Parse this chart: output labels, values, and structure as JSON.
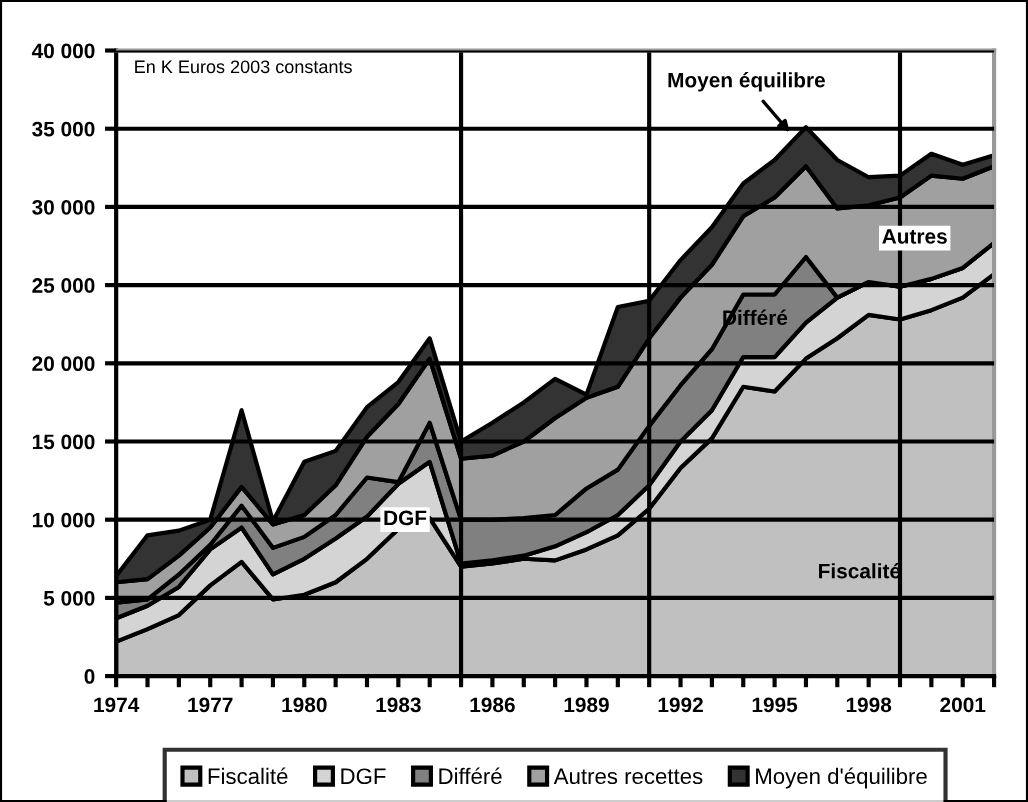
{
  "chart_data": {
    "type": "area",
    "stacked": true,
    "x": [
      1974,
      1975,
      1976,
      1977,
      1978,
      1979,
      1980,
      1981,
      1982,
      1983,
      1984,
      1985,
      1986,
      1987,
      1988,
      1989,
      1990,
      1991,
      1992,
      1993,
      1994,
      1995,
      1996,
      1997,
      1998,
      1999,
      2000,
      2001,
      2002
    ],
    "series": [
      {
        "name": "Fiscalité",
        "color": "#c0c0c0",
        "values": [
          2200,
          3000,
          3900,
          5800,
          7300,
          4900,
          5200,
          6000,
          7500,
          9400,
          10100,
          7000,
          7200,
          7500,
          7400,
          8100,
          9000,
          10700,
          13300,
          15200,
          18500,
          18200,
          20300,
          21600,
          23100,
          22800,
          23400,
          24200,
          25700
        ]
      },
      {
        "name": "DGF",
        "color": "#d4d4d4",
        "values": [
          1500,
          1500,
          1800,
          2300,
          2200,
          1600,
          2300,
          2800,
          2700,
          2900,
          3600,
          200,
          200,
          200,
          900,
          1100,
          1300,
          1500,
          1700,
          1800,
          1900,
          2200,
          2300,
          2600,
          2100,
          2100,
          2000,
          1900,
          2000
        ]
      },
      {
        "name": "Différé",
        "color": "#808080",
        "values": [
          1000,
          400,
          800,
          300,
          1400,
          1700,
          1400,
          1500,
          2500,
          100,
          2500,
          2800,
          2600,
          2400,
          2000,
          2800,
          2900,
          3800,
          3600,
          3900,
          4000,
          4000,
          4200,
          0,
          0,
          0,
          0,
          0,
          0
        ]
      },
      {
        "name": "Autres recettes",
        "color": "#a0a0a0",
        "values": [
          1300,
          1300,
          1200,
          1100,
          1200,
          1500,
          1400,
          1900,
          2600,
          5000,
          4100,
          3900,
          4100,
          4900,
          6200,
          5800,
          5300,
          5600,
          5600,
          5400,
          5000,
          6200,
          5800,
          5700,
          4900,
          5700,
          6600,
          5700,
          4900
        ]
      },
      {
        "name": "Moyen d'équilibre",
        "color": "#333333",
        "values": [
          400,
          2800,
          1600,
          500,
          4900,
          200,
          3400,
          2200,
          1900,
          1400,
          1300,
          1100,
          2100,
          2500,
          2500,
          200,
          5100,
          2400,
          2400,
          2400,
          2100,
          2400,
          2500,
          3100,
          1800,
          1400,
          1400,
          900,
          700
        ]
      }
    ],
    "xlim": [
      1974,
      2002
    ],
    "xticks": [
      1974,
      1977,
      1980,
      1983,
      1986,
      1989,
      1992,
      1995,
      1998,
      2001
    ],
    "ylim": [
      0,
      40000
    ],
    "yticks": [
      0,
      {
        "value": 5000,
        "label": "5 000"
      },
      {
        "value": 10000,
        "label": "10 000"
      },
      {
        "value": 15000,
        "label": "15 000"
      },
      {
        "value": 20000,
        "label": "20 000"
      },
      {
        "value": 25000,
        "label": "25 000"
      },
      {
        "value": 30000,
        "label": "30 000"
      },
      {
        "value": 35000,
        "label": "35 000"
      },
      {
        "value": 40000,
        "label": "40 000"
      }
    ],
    "grid": "y",
    "legend": "bottom",
    "ref_lines": [
      {
        "axis": "x",
        "value": 1985,
        "color": "#000000"
      },
      {
        "axis": "x",
        "value": 1991,
        "color": "#000000"
      },
      {
        "axis": "x",
        "value": 1999,
        "color": "#000000"
      }
    ],
    "annotations": [
      "En K Euros 2003 constants",
      "DGF",
      {
        "text": "Moyen équilibre",
        "x": 1995.6,
        "y": 34500
      },
      "Autres",
      "Différé",
      "Fiscalité"
    ]
  }
}
